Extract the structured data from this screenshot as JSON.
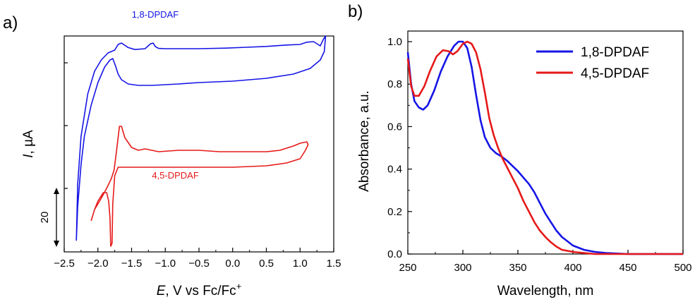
{
  "panels": {
    "a": "a)",
    "b": "b)"
  },
  "colors": {
    "blue": "#1515e6",
    "red": "#e61919"
  },
  "chart_data": [
    {
      "type": "line",
      "title": "",
      "xlabel_italic": "E",
      "xlabel_rest": ", V vs Fc/Fc",
      "xlabel_sup": "+",
      "ylabel_italic": "I",
      "ylabel_rest": ", µA",
      "xlim": [
        -2.5,
        1.5
      ],
      "xticks": [
        "-2.5",
        "-2.0",
        "-1.5",
        "-1.0",
        "-0.5",
        "0.0",
        "0.5",
        "1.0",
        "1.5"
      ],
      "xtick_values": [
        -2.5,
        -2.0,
        -1.5,
        -1.0,
        -0.5,
        0.0,
        0.5,
        1.0,
        1.5
      ],
      "scale_bar": {
        "label": "20",
        "value_uA": 20
      },
      "series": [
        {
          "name": "1,8-DPDAF",
          "color": "blue",
          "label_at": [
            -1.15,
            9
          ],
          "points": [
            [
              -2.32,
              -70
            ],
            [
              -2.3,
              -58
            ],
            [
              -2.25,
              -43
            ],
            [
              -2.2,
              -33
            ],
            [
              -2.1,
              -22
            ],
            [
              -2.0,
              -14
            ],
            [
              -1.9,
              -8.5
            ],
            [
              -1.82,
              -6
            ],
            [
              -1.78,
              -5.5
            ],
            [
              -1.74,
              -8
            ],
            [
              -1.7,
              -11
            ],
            [
              -1.65,
              -13
            ],
            [
              -1.55,
              -14.5
            ],
            [
              -1.4,
              -15
            ],
            [
              -1.2,
              -15
            ],
            [
              -0.8,
              -14.5
            ],
            [
              -0.5,
              -14
            ],
            [
              0.0,
              -13.5
            ],
            [
              0.5,
              -12.5
            ],
            [
              0.9,
              -11
            ],
            [
              1.15,
              -9
            ],
            [
              1.3,
              -6
            ],
            [
              1.36,
              -3
            ],
            [
              1.38,
              2.5
            ],
            [
              1.35,
              1.5
            ],
            [
              1.3,
              -1
            ],
            [
              1.2,
              0.5
            ],
            [
              1.1,
              0.3
            ],
            [
              1.0,
              -0.5
            ],
            [
              0.8,
              -0.7
            ],
            [
              0.5,
              -1.2
            ],
            [
              0.2,
              -1.5
            ],
            [
              -0.1,
              -1.8
            ],
            [
              -0.5,
              -2.0
            ],
            [
              -0.8,
              -2.0
            ],
            [
              -1.0,
              -2.0
            ],
            [
              -1.1,
              -1.9
            ],
            [
              -1.15,
              -1.2
            ],
            [
              -1.18,
              0
            ],
            [
              -1.22,
              -0.3
            ],
            [
              -1.3,
              -2.0
            ],
            [
              -1.45,
              -2.3
            ],
            [
              -1.55,
              -1.6
            ],
            [
              -1.65,
              0
            ],
            [
              -1.7,
              -0.5
            ],
            [
              -1.75,
              -2.5
            ],
            [
              -1.85,
              -3.5
            ],
            [
              -1.95,
              -6
            ],
            [
              -2.05,
              -10
            ],
            [
              -2.15,
              -18
            ],
            [
              -2.25,
              -33
            ],
            [
              -2.3,
              -50
            ],
            [
              -2.32,
              -70
            ]
          ]
        },
        {
          "name": "4,5-DPDAF",
          "color": "red",
          "label_at": [
            -0.85,
            -48
          ],
          "points": [
            [
              -2.1,
              -63
            ],
            [
              -2.05,
              -59
            ],
            [
              -2.0,
              -56
            ],
            [
              -1.92,
              -53
            ],
            [
              -1.87,
              -53
            ],
            [
              -1.84,
              -56
            ],
            [
              -1.82,
              -62
            ],
            [
              -1.81,
              -72
            ],
            [
              -1.79,
              -71
            ],
            [
              -1.78,
              -57
            ],
            [
              -1.75,
              -47
            ],
            [
              -1.7,
              -44
            ],
            [
              -1.6,
              -44
            ],
            [
              -1.4,
              -44
            ],
            [
              -1.0,
              -44
            ],
            [
              -0.5,
              -44
            ],
            [
              0.0,
              -44
            ],
            [
              0.5,
              -43.5
            ],
            [
              0.8,
              -42.5
            ],
            [
              1.0,
              -41
            ],
            [
              1.08,
              -38
            ],
            [
              1.12,
              -36
            ],
            [
              1.1,
              -35
            ],
            [
              1.0,
              -35.5
            ],
            [
              0.9,
              -36.5
            ],
            [
              0.7,
              -38
            ],
            [
              0.5,
              -38.5
            ],
            [
              0.2,
              -38.5
            ],
            [
              -0.2,
              -38.5
            ],
            [
              -0.5,
              -38
            ],
            [
              -0.8,
              -38
            ],
            [
              -1.1,
              -38.5
            ],
            [
              -1.2,
              -38
            ],
            [
              -1.3,
              -37.5
            ],
            [
              -1.4,
              -38
            ],
            [
              -1.5,
              -37
            ],
            [
              -1.6,
              -33.5
            ],
            [
              -1.65,
              -29.5
            ],
            [
              -1.68,
              -29.5
            ],
            [
              -1.72,
              -37.5
            ],
            [
              -1.76,
              -45
            ],
            [
              -1.8,
              -48
            ],
            [
              -1.86,
              -51
            ],
            [
              -1.95,
              -55
            ],
            [
              -2.05,
              -59
            ],
            [
              -2.1,
              -63
            ]
          ]
        }
      ]
    },
    {
      "type": "line",
      "title": "",
      "xlabel": "Wavelength, nm",
      "ylabel": "Absorbance, a.u.",
      "xlim": [
        250,
        500
      ],
      "ylim": [
        0.0,
        1.05
      ],
      "xticks": [
        "250",
        "300",
        "350",
        "400",
        "450",
        "500"
      ],
      "xtick_values": [
        250,
        300,
        350,
        400,
        450,
        500
      ],
      "yticks": [
        "0.0",
        "0.2",
        "0.4",
        "0.6",
        "0.8",
        "1.0"
      ],
      "ytick_values": [
        0.0,
        0.2,
        0.4,
        0.6,
        0.8,
        1.0
      ],
      "legend_position": "top-right",
      "series": [
        {
          "name": "1,8-DPDAF",
          "color": "blue",
          "points": [
            [
              250,
              0.95
            ],
            [
              253,
              0.8
            ],
            [
              256,
              0.72
            ],
            [
              260,
              0.69
            ],
            [
              264,
              0.68
            ],
            [
              268,
              0.7
            ],
            [
              274,
              0.77
            ],
            [
              280,
              0.86
            ],
            [
              286,
              0.93
            ],
            [
              292,
              0.98
            ],
            [
              296,
              1.0
            ],
            [
              300,
              1.0
            ],
            [
              304,
              0.97
            ],
            [
              308,
              0.88
            ],
            [
              312,
              0.75
            ],
            [
              316,
              0.63
            ],
            [
              320,
              0.55
            ],
            [
              325,
              0.5
            ],
            [
              330,
              0.475
            ],
            [
              335,
              0.46
            ],
            [
              340,
              0.44
            ],
            [
              345,
              0.415
            ],
            [
              350,
              0.39
            ],
            [
              355,
              0.36
            ],
            [
              360,
              0.33
            ],
            [
              365,
              0.29
            ],
            [
              370,
              0.24
            ],
            [
              375,
              0.19
            ],
            [
              380,
              0.15
            ],
            [
              385,
              0.11
            ],
            [
              390,
              0.08
            ],
            [
              395,
              0.06
            ],
            [
              400,
              0.04
            ],
            [
              410,
              0.02
            ],
            [
              420,
              0.01
            ],
            [
              430,
              0.005
            ],
            [
              450,
              0.0
            ],
            [
              500,
              0.0
            ]
          ]
        },
        {
          "name": "4,5-DPDAF",
          "color": "red",
          "points": [
            [
              250,
              0.92
            ],
            [
              253,
              0.79
            ],
            [
              256,
              0.745
            ],
            [
              260,
              0.745
            ],
            [
              265,
              0.79
            ],
            [
              270,
              0.86
            ],
            [
              276,
              0.93
            ],
            [
              282,
              0.96
            ],
            [
              287,
              0.955
            ],
            [
              291,
              0.94
            ],
            [
              295,
              0.955
            ],
            [
              300,
              0.99
            ],
            [
              304,
              1.0
            ],
            [
              308,
              0.99
            ],
            [
              312,
              0.95
            ],
            [
              316,
              0.87
            ],
            [
              320,
              0.76
            ],
            [
              324,
              0.64
            ],
            [
              328,
              0.56
            ],
            [
              332,
              0.5
            ],
            [
              336,
              0.45
            ],
            [
              340,
              0.41
            ],
            [
              345,
              0.36
            ],
            [
              350,
              0.31
            ],
            [
              355,
              0.25
            ],
            [
              360,
              0.2
            ],
            [
              365,
              0.15
            ],
            [
              370,
              0.11
            ],
            [
              375,
              0.08
            ],
            [
              380,
              0.055
            ],
            [
              385,
              0.035
            ],
            [
              390,
              0.02
            ],
            [
              400,
              0.01
            ],
            [
              410,
              0.005
            ],
            [
              420,
              0.0
            ],
            [
              500,
              0.0
            ]
          ]
        }
      ]
    }
  ]
}
